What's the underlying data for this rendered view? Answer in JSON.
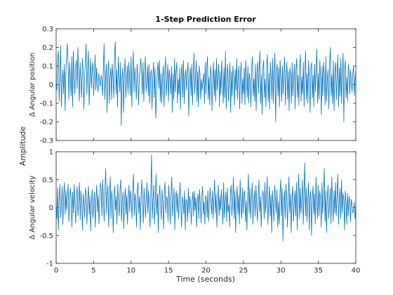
{
  "chart_data": {
    "type": "line",
    "title": "1-Step Prediction Error",
    "xlabel": "Time (seconds)",
    "ylabel": "Amplitude",
    "line_color": "#0072bd",
    "x_start": 0,
    "x_step": 0.1,
    "xlim": [
      0,
      40
    ],
    "xticks": [
      0,
      5,
      10,
      15,
      20,
      25,
      30,
      35,
      40
    ],
    "xtick_labels": [
      "0",
      "5",
      "10",
      "15",
      "20",
      "25",
      "30",
      "35",
      "40"
    ],
    "grid": false,
    "panels": [
      {
        "name": "Δ Angular position",
        "ylim": [
          -0.3,
          0.3
        ],
        "yticks": [
          -0.3,
          -0.2,
          -0.1,
          0,
          0.1,
          0.2,
          0.3
        ],
        "ytick_labels": [
          "-0.3",
          "-0.2",
          "-0.1",
          "0",
          "0.1",
          "0.2",
          "0.3"
        ],
        "values": [
          0.02,
          -0.03,
          0.14,
          0.18,
          -0.09,
          0.04,
          0.21,
          -0.12,
          0.02,
          0.08,
          -0.05,
          0.11,
          -0.14,
          0.06,
          0.16,
          0.22,
          0.09,
          -0.08,
          0.12,
          0.03,
          -0.06,
          0.15,
          -0.12,
          0.18,
          0.04,
          -0.05,
          0.09,
          0.13,
          -0.02,
          0.2,
          0.06,
          -0.09,
          0.12,
          0.02,
          -0.07,
          0.14,
          0.08,
          -0.13,
          0.05,
          0.12,
          0.22,
          -0.05,
          0.07,
          0.18,
          -0.11,
          0.03,
          0.14,
          -0.02,
          0.08,
          0.12,
          -0.06,
          0.03,
          0.16,
          -0.03,
          0.09,
          0.01,
          -0.04,
          0.06,
          0.02,
          -0.01,
          0.05,
          0.03,
          -0.06,
          0.08,
          0.22,
          -0.08,
          0.04,
          0.11,
          -0.15,
          0.06,
          0.13,
          -0.1,
          0.04,
          0.09,
          -0.08,
          0.11,
          0.03,
          -0.07,
          0.17,
          0.23,
          -0.05,
          0.08,
          -0.12,
          0.15,
          0.05,
          -0.04,
          0.12,
          -0.22,
          0.03,
          0.09,
          -0.15,
          0.05,
          0.14,
          -0.07,
          0.02,
          0.1,
          -0.05,
          0.12,
          0.03,
          -0.06,
          0.15,
          -0.12,
          0.06,
          0.18,
          -0.04,
          0.09,
          0.02,
          -0.08,
          0.11,
          0.05,
          -0.11,
          0.03,
          0.08,
          0.14,
          0.07,
          -0.05,
          0.12,
          -0.09,
          0.06,
          0.15,
          -0.04,
          0.02,
          0.1,
          -0.06,
          0.11,
          -0.1,
          0.05,
          0.08,
          -0.13,
          0.04,
          0.12,
          -0.07,
          0.09,
          -0.18,
          -0.05,
          0.07,
          0.12,
          -0.02,
          0.13,
          -0.09,
          0.06,
          -0.1,
          0.03,
          0.1,
          -0.12,
          0.07,
          0.15,
          -0.06,
          0.02,
          0.11,
          -0.09,
          0.08,
          0.03,
          -0.05,
          0.1,
          -0.15,
          0.06,
          -0.08,
          0.14,
          -0.04,
          0.07,
          0.12,
          -0.1,
          0.03,
          -0.05,
          0.09,
          -0.13,
          0.05,
          0.11,
          -0.07,
          0.13,
          -0.1,
          0.04,
          0.08,
          -0.03,
          0.06,
          0.12,
          -0.17,
          0.02,
          0.09,
          -0.06,
          0.11,
          -0.11,
          0.05,
          0.17,
          -0.05,
          0.03,
          0.13,
          -0.09,
          0.07,
          -0.12,
          0.1,
          0.06,
          -0.08,
          0.03,
          -0.03,
          0.02,
          0.06,
          -0.1,
          0.12,
          -0.05,
          0.09,
          0.15,
          -0.08,
          0.04,
          -0.11,
          0.1,
          0.06,
          -0.14,
          0.03,
          0.12,
          -0.06,
          0.08,
          -0.09,
          0.14,
          -0.03,
          0.05,
          0.11,
          -0.12,
          0.07,
          -0.05,
          0.13,
          0.02,
          -0.1,
          0.09,
          -0.07,
          0.18,
          -0.13,
          0.05,
          0.11,
          -0.09,
          0.03,
          0.12,
          -0.15,
          0.07,
          -0.06,
          0.1,
          0.04,
          -0.11,
          0.08,
          -0.03,
          0.14,
          -0.08,
          0.05,
          0.1,
          -0.13,
          0.06,
          0.12,
          -0.1,
          0.03,
          -0.05,
          0.09,
          -0.11,
          0.13,
          0.04,
          -0.07,
          0.1,
          -0.1,
          0.06,
          0.02,
          -0.12,
          0.09,
          0.15,
          -0.06,
          0.03,
          -0.09,
          0.11,
          -0.14,
          0.07,
          0.12,
          -0.05,
          0.08,
          0.18,
          -0.1,
          0.05,
          -0.16,
          0.09,
          0.13,
          -0.07,
          0.03,
          -0.12,
          0.1,
          0.16,
          -0.09,
          0.06,
          -0.13,
          0.12,
          0.04,
          -0.08,
          0.14,
          -0.1,
          0.06,
          0.17,
          -0.2,
          0.07,
          0.11,
          -0.06,
          0.09,
          -0.12,
          0.13,
          0.03,
          -0.09,
          0.1,
          -0.05,
          0.06,
          0.15,
          -0.11,
          0.04,
          0.12,
          -0.08,
          0.07,
          -0.14,
          0.09,
          0.05,
          -0.1,
          0.12,
          -0.06,
          0.03,
          0.11,
          -0.13,
          0.08,
          0.14,
          -0.07,
          0.05,
          -0.11,
          0.1,
          0.16,
          -0.09,
          0.04,
          -0.05,
          0.12,
          -0.12,
          0.07,
          0.18,
          -0.08,
          0.06,
          -0.1,
          0.13,
          0.03,
          -0.15,
          0.09,
          0.12,
          -0.07,
          0.05,
          -0.12,
          0.11,
          -0.04,
          0.08,
          0.19,
          -0.1,
          0.06,
          -0.08,
          0.13,
          0.04,
          -0.16,
          0.1,
          -0.06,
          0.12,
          0.05,
          -0.11,
          0.15,
          -0.09,
          0.03,
          0.08,
          -0.13,
          0.11,
          0.2,
          -0.06,
          0.05,
          -0.1,
          0.13,
          -0.14,
          0.07,
          0.12,
          -0.08,
          0.04,
          0.16,
          -0.12,
          0.09,
          -0.06,
          0.14,
          -0.1,
          0.05,
          0.17,
          -0.2,
          0.08,
          0.13,
          -0.07,
          0.04,
          -0.09,
          0.11,
          0.06,
          -0.05,
          0.08,
          0.02,
          -0.04,
          0.06,
          0.1,
          -0.06,
          0.03,
          0.08
        ],
        "ytick_source": "axis"
      },
      {
        "name": "Δ Angular velocity",
        "ylim": [
          -1,
          1
        ],
        "yticks": [
          -1,
          -0.5,
          0,
          0.5,
          1
        ],
        "ytick_labels": [
          "-1",
          "-0.5",
          "0",
          "0.5",
          "1"
        ],
        "values": [
          0.1,
          -0.2,
          0.35,
          -0.4,
          0.15,
          0.42,
          -0.18,
          0.05,
          0.38,
          -0.3,
          0.22,
          0.45,
          -0.12,
          0.3,
          -0.05,
          0.18,
          0.42,
          -0.25,
          0.08,
          0.35,
          0.15,
          -0.35,
          0.28,
          -0.1,
          0.42,
          0.05,
          -0.28,
          0.2,
          0.38,
          -0.15,
          0.12,
          0.45,
          -0.22,
          0.3,
          0.08,
          -0.4,
          0.25,
          0.1,
          -0.18,
          0.35,
          0.25,
          -0.3,
          0.15,
          0.38,
          -0.12,
          0.2,
          -0.42,
          0.1,
          0.32,
          -0.2,
          0.05,
          0.28,
          -0.35,
          0.15,
          0.4,
          -0.08,
          0.22,
          -0.3,
          0.12,
          0.45,
          0.3,
          -0.15,
          0.5,
          0.1,
          -0.25,
          0.35,
          0.7,
          -0.1,
          0.25,
          0.4,
          -0.35,
          0.15,
          0.55,
          -0.2,
          0.3,
          0.1,
          -0.45,
          0.2,
          0.38,
          -0.05,
          0.2,
          -0.3,
          0.42,
          0.08,
          -0.15,
          0.32,
          0.5,
          -0.25,
          0.12,
          0.28,
          -0.38,
          0.1,
          0.35,
          -0.12,
          0.22,
          -0.3,
          0.15,
          0.4,
          -0.08,
          0.3,
          0.15,
          -0.2,
          0.35,
          0.6,
          -0.15,
          0.25,
          0.1,
          -0.35,
          0.3,
          0.45,
          -0.1,
          0.2,
          -0.4,
          0.15,
          0.5,
          0.05,
          -0.28,
          0.35,
          0.12,
          -0.18,
          0.2,
          0.45,
          -0.1,
          0.3,
          0.05,
          -0.35,
          0.22,
          0.95,
          -0.2,
          0.15,
          0.4,
          -0.3,
          0.1,
          0.6,
          -0.12,
          0.25,
          -0.45,
          0.18,
          0.4,
          0.05,
          -0.22,
          0.32,
          0.1,
          -0.38,
          0.28,
          0.45,
          -0.1,
          0.2,
          0.15,
          -0.25,
          0.4,
          0.08,
          -0.3,
          0.22,
          0.55,
          -0.15,
          0.1,
          0.35,
          -0.4,
          0.18,
          0.3,
          -0.08,
          0.25,
          -0.2,
          0.12,
          0.45,
          0.02,
          -0.35,
          0.2,
          0.1,
          -0.12,
          0.3,
          -0.4,
          0.15,
          0.08,
          -0.25,
          0.35,
          -0.1,
          0.2,
          0.05,
          -0.3,
          0.12,
          0.28,
          -0.15,
          0.3,
          -0.05,
          0.18,
          -0.35,
          0.1,
          0.25,
          -0.2,
          0.32,
          0.05,
          -0.28,
          0.2,
          0.38,
          -0.12,
          0.1,
          -0.3,
          0.22,
          0.15,
          -0.18,
          0.3,
          -0.25,
          0.1,
          0.35,
          0.1,
          -0.12,
          0.3,
          -0.2,
          0.15,
          0.5,
          -0.1,
          0.25,
          -0.35,
          0.08,
          0.4,
          -0.15,
          0.2,
          -0.05,
          0.32,
          0.1,
          -0.3,
          0.45,
          -0.18,
          0.12,
          0.28,
          -0.25,
          0.35,
          -0.08,
          0.05,
          -0.35,
          0.25,
          0.4,
          -0.15,
          0.1,
          0.55,
          -0.2,
          0.3,
          -0.45,
          0.15,
          0.38,
          -0.12,
          0.22,
          -0.3,
          0.5,
          0.05,
          -0.2,
          0.35,
          -0.1,
          0.25,
          0.3,
          -0.25,
          0.12,
          -0.4,
          0.2,
          0.6,
          -0.1,
          0.35,
          -0.2,
          0.15,
          0.45,
          -0.3,
          0.08,
          0.3,
          -0.15,
          0.4,
          0.05,
          -0.25,
          0.18,
          0.5,
          -0.08,
          0.2,
          -0.35,
          0.12,
          0.3,
          0.25,
          -0.2,
          0.45,
          -0.1,
          0.15,
          0.55,
          -0.3,
          0.1,
          0.38,
          -0.15,
          0.22,
          -0.45,
          0.3,
          0.05,
          -0.25,
          0.4,
          0.15,
          -0.1,
          0.32,
          -0.35,
          0.1,
          -0.3,
          0.25,
          0.5,
          -0.15,
          0.35,
          -0.6,
          0.1,
          0.3,
          -0.2,
          0.42,
          0.15,
          -0.35,
          0.2,
          0.55,
          -0.1,
          0.25,
          -0.45,
          0.15,
          0.38,
          -0.25,
          0.05,
          0.3,
          -0.15,
          0.45,
          -0.4,
          0.2,
          0.6,
          -0.2,
          0.35,
          -0.1,
          0.15,
          0.5,
          -0.3,
          0.25,
          0.8,
          -0.15,
          0.35,
          -0.25,
          0.1,
          0.45,
          -0.4,
          0.2,
          0.3,
          -0.5,
          0.15,
          0.38,
          -0.12,
          0.25,
          -0.3,
          0.55,
          0.1,
          -0.2,
          0.4,
          -0.15,
          0.3,
          0.15,
          -0.35,
          0.45,
          -0.1,
          0.2,
          0.7,
          -0.25,
          0.3,
          -0.45,
          0.15,
          0.4,
          -0.2,
          0.1,
          0.35,
          -0.3,
          0.55,
          0.05,
          -0.25,
          0.3,
          -0.1,
          0.45,
          -0.15,
          0.2,
          0.6,
          -0.3,
          0.1,
          0.35,
          -0.2,
          0.5,
          -0.1,
          0.25,
          0.15,
          -0.4,
          0.3,
          0.08,
          -0.3,
          0.25,
          -0.15,
          0.2,
          0.1,
          -0.25,
          0.15,
          0.05,
          -0.1,
          -0.05,
          0.1,
          -0.2,
          0.05
        ],
        "ytick_source": "axis"
      }
    ]
  }
}
